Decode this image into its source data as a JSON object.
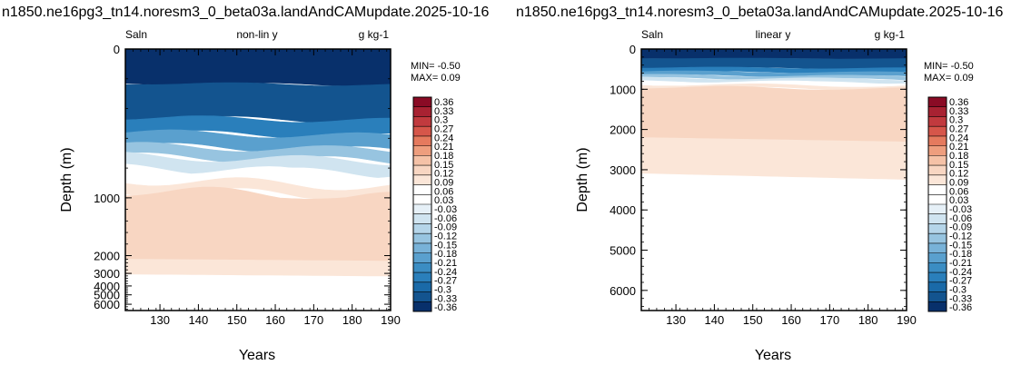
{
  "colors": {
    "levels": [
      "#08306b",
      "#0d4480",
      "#13548f",
      "#1a6aa8",
      "#2a7fbb",
      "#3b8dc3",
      "#5aa0ce",
      "#78b2d8",
      "#97c4e0",
      "#b5d5e9",
      "#d0e4f0",
      "#e6f0f7",
      "#ffffff",
      "#fbe6d8",
      "#f8d6c2",
      "#f5c2a7",
      "#ee9e7e",
      "#e57a5e",
      "#d6564a",
      "#c13a3e",
      "#a82232",
      "#8a0b25"
    ],
    "cb_order": [
      "#8a0b25",
      "#a82232",
      "#c13a3e",
      "#d6564a",
      "#e57a5e",
      "#ee9e7e",
      "#f5c2a7",
      "#f8d6c2",
      "#fbe6d8",
      "#ffffff",
      "#ffffff",
      "#e6f0f7",
      "#d0e4f0",
      "#b5d5e9",
      "#97c4e0",
      "#78b2d8",
      "#5aa0ce",
      "#3b8dc3",
      "#2a7fbb",
      "#1a6aa8",
      "#13548f",
      "#08306b"
    ]
  },
  "chart_data": [
    {
      "type": "heatmap",
      "title": "n1850.ne16pg3_tn14.noresm3_0_beta03a.landAndCAMupdate.2025-10-16",
      "left_label": "Saln",
      "center_label": "non-lin y",
      "right_label": "g kg-1",
      "xlabel": "Years",
      "ylabel": "Depth (m)",
      "x_ticks": [
        130,
        140,
        150,
        160,
        170,
        180,
        190
      ],
      "y_ticks": [
        "0",
        "1000",
        "2000",
        "3000",
        "4000",
        "5000",
        "6000"
      ],
      "y_scale": "non-linear (upper ocean expanded)",
      "xlim": [
        121,
        190
      ],
      "ylim": [
        6500,
        0
      ],
      "min_text": "MIN= -0.50",
      "max_text": "MAX=  0.09",
      "contour_depths_m": [
        {
          "color": "#08306b",
          "top": 0,
          "bottom": 230
        },
        {
          "color": "#13548f",
          "top": 230,
          "bottom": 460
        },
        {
          "color": "#2a7fbb",
          "top": 460,
          "bottom": 560
        },
        {
          "color": "#5aa0ce",
          "top": 560,
          "bottom": 650
        },
        {
          "color": "#97c4e0",
          "top": 650,
          "bottom": 720
        },
        {
          "color": "#d0e4f0",
          "top": 720,
          "bottom": 800
        },
        {
          "color": "#ffffff",
          "top": 800,
          "bottom": 880
        },
        {
          "color": "#fbe6d8",
          "top": 880,
          "bottom": 950
        },
        {
          "color": "#f8d6c2",
          "top": 950,
          "bottom": 2200
        },
        {
          "color": "#fbe6d8",
          "top": 2200,
          "bottom": 3100
        },
        {
          "color": "#ffffff",
          "top": 3100,
          "bottom": 6500
        }
      ]
    },
    {
      "type": "heatmap",
      "title": "n1850.ne16pg3_tn14.noresm3_0_beta03a.landAndCAMupdate.2025-10-16",
      "left_label": "Saln",
      "center_label": "linear y",
      "right_label": "g kg-1",
      "xlabel": "Years",
      "ylabel": "Depth (m)",
      "x_ticks": [
        130,
        140,
        150,
        160,
        170,
        180,
        190
      ],
      "y_ticks": [
        "0",
        "1000",
        "2000",
        "3000",
        "4000",
        "5000",
        "6000"
      ],
      "y_scale": "linear",
      "xlim": [
        121,
        190
      ],
      "ylim": [
        6500,
        0
      ],
      "min_text": "MIN= -0.50",
      "max_text": "MAX=  0.09",
      "contour_depths_m": [
        {
          "color": "#08306b",
          "top": 0,
          "bottom": 230
        },
        {
          "color": "#13548f",
          "top": 230,
          "bottom": 460
        },
        {
          "color": "#2a7fbb",
          "top": 460,
          "bottom": 560
        },
        {
          "color": "#5aa0ce",
          "top": 560,
          "bottom": 650
        },
        {
          "color": "#97c4e0",
          "top": 650,
          "bottom": 720
        },
        {
          "color": "#d0e4f0",
          "top": 720,
          "bottom": 800
        },
        {
          "color": "#ffffff",
          "top": 800,
          "bottom": 880
        },
        {
          "color": "#fbe6d8",
          "top": 880,
          "bottom": 950
        },
        {
          "color": "#f8d6c2",
          "top": 950,
          "bottom": 2200
        },
        {
          "color": "#fbe6d8",
          "top": 2200,
          "bottom": 3100
        },
        {
          "color": "#ffffff",
          "top": 3100,
          "bottom": 6500
        }
      ]
    }
  ],
  "colorbar": {
    "labels": [
      "0.36",
      "0.33",
      "0.3",
      "0.27",
      "0.24",
      "0.21",
      "0.18",
      "0.15",
      "0.12",
      "0.09",
      "0.06",
      "0.03",
      "-0.03",
      "-0.06",
      "-0.09",
      "-0.12",
      "-0.15",
      "-0.18",
      "-0.21",
      "-0.24",
      "-0.27",
      "-0.3",
      "-0.33",
      "-0.36"
    ]
  }
}
